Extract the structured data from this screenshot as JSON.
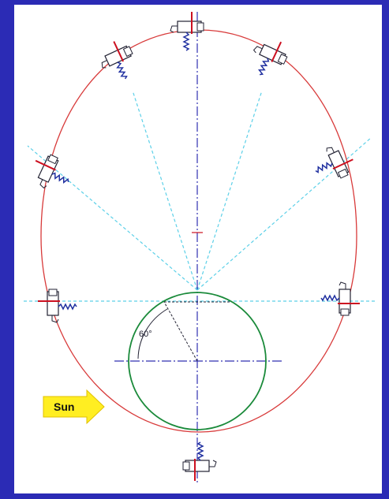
{
  "labels": {
    "angle": "60°",
    "sun": "Sun"
  }
}
